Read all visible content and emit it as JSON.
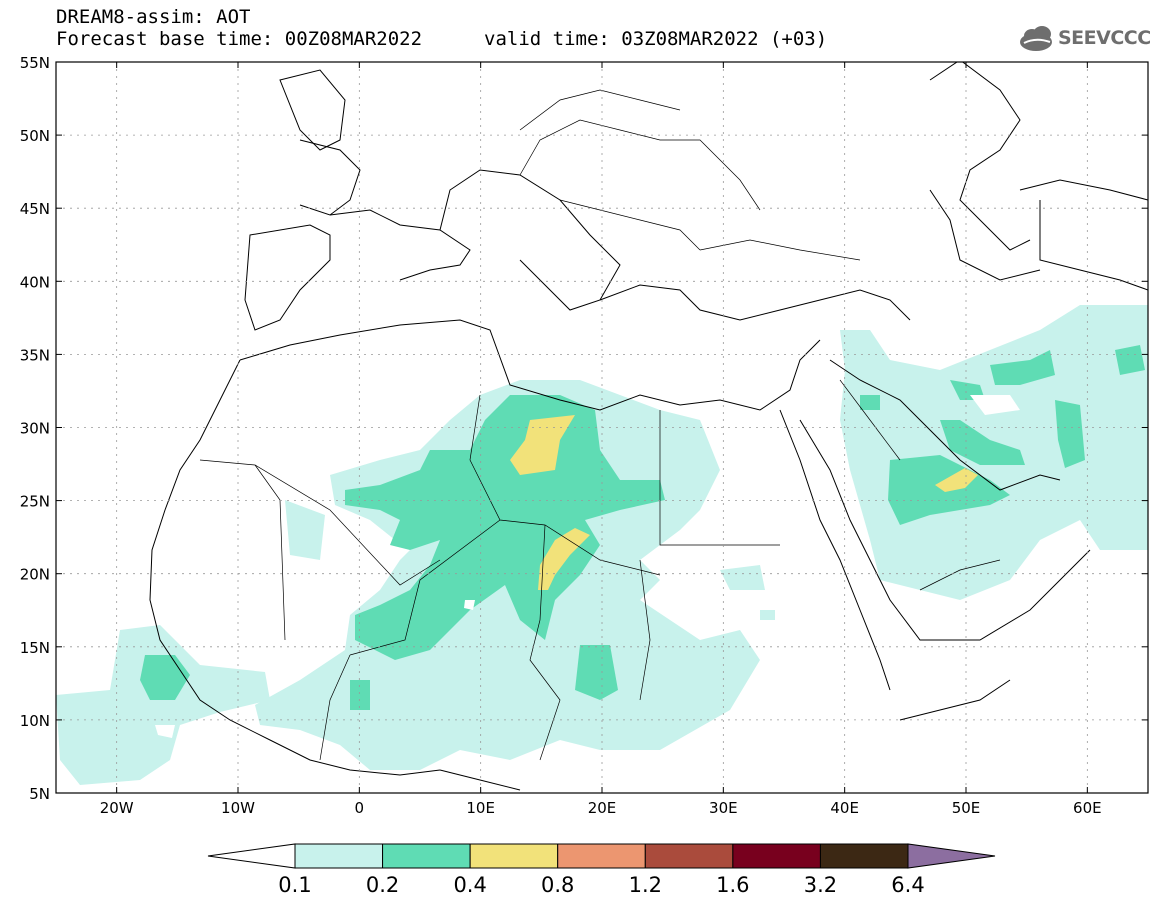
{
  "header": {
    "title": "DREAM8-assim: AOT",
    "base_time": "Forecast base time: 00Z08MAR2022",
    "valid_time": "valid time: 03Z08MAR2022 (+03)"
  },
  "logo": {
    "text": "SEEVCCC",
    "icon": "cloud-logo-icon"
  },
  "map": {
    "lat_labels": [
      "55N",
      "50N",
      "45N",
      "40N",
      "35N",
      "30N",
      "25N",
      "20N",
      "15N",
      "10N",
      "5N"
    ],
    "lon_labels": [
      "20W",
      "10W",
      "0",
      "10E",
      "20E",
      "30E",
      "40E",
      "50E",
      "60E"
    ],
    "lat_values": [
      55,
      50,
      45,
      40,
      35,
      30,
      25,
      20,
      15,
      10,
      5
    ],
    "lon_values": [
      -20,
      -10,
      0,
      10,
      20,
      30,
      40,
      50,
      60
    ],
    "lon_range": [
      -25,
      65
    ],
    "lat_range": [
      5,
      55
    ],
    "grid": true,
    "grid_style": "dotted"
  },
  "legend": {
    "labels": [
      "0.1",
      "0.2",
      "0.4",
      "0.8",
      "1.2",
      "1.6",
      "3.2",
      "6.4"
    ],
    "colors": [
      "#ffffff",
      "#c8f2ec",
      "#5fdcb4",
      "#f2e27a",
      "#ec9670",
      "#aa4b3c",
      "#78001e",
      "#3c2814",
      "#8c6ea0"
    ]
  }
}
